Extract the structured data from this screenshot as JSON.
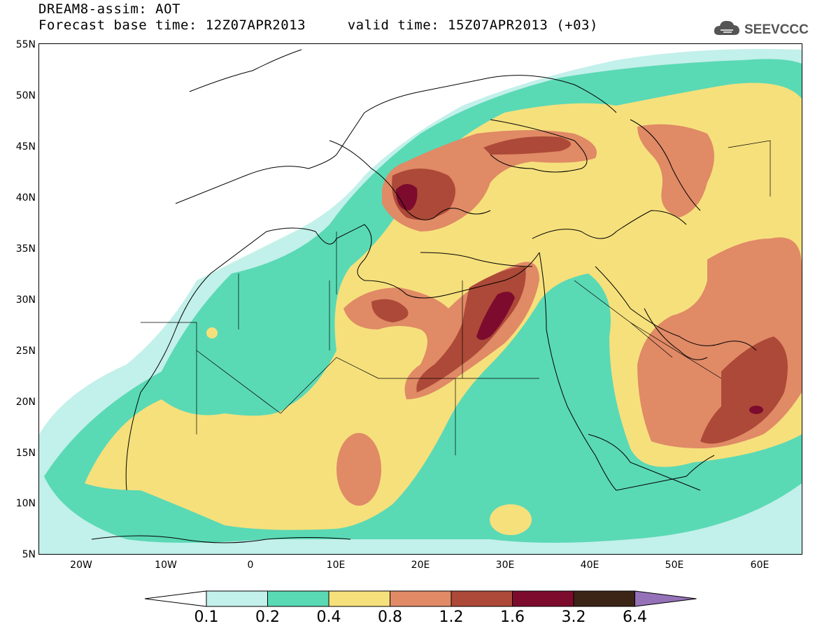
{
  "header": {
    "title_line1": "DREAM8-assim: AOT",
    "title_line2": "Forecast base time: 12Z07APR2013     valid time: 15Z07APR2013 (+03)"
  },
  "logo": {
    "text": "SEEVCCC",
    "icon": "cloud-icon"
  },
  "map": {
    "projection": "lat-lon",
    "lon_range": [
      -25,
      65
    ],
    "lat_range": [
      5,
      55
    ],
    "background": "#ffffff",
    "coastline_color": "#000000",
    "lat_labels": [
      "55N",
      "50N",
      "45N",
      "40N",
      "35N",
      "30N",
      "25N",
      "20N",
      "15N",
      "10N",
      "5N"
    ],
    "lon_labels": [
      "20W",
      "10W",
      "0",
      "10E",
      "20E",
      "30E",
      "40E",
      "50E",
      "60E"
    ]
  },
  "legend": {
    "boundaries": [
      "0.1",
      "0.2",
      "0.4",
      "0.8",
      "1.2",
      "1.6",
      "3.2",
      "6.4"
    ],
    "colors": [
      "#ffffff",
      "#c2f0ea",
      "#5ad9b5",
      "#f6e07c",
      "#e08a66",
      "#ad4938",
      "#7d0b2e",
      "#3c2417",
      "#9572b8"
    ],
    "extend": "both"
  }
}
